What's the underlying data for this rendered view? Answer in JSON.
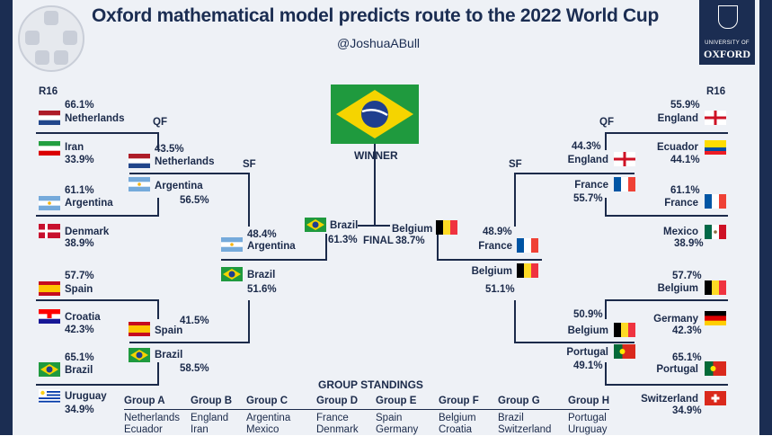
{
  "title": "Oxford mathematical model predicts route to the 2022 World Cup",
  "handle": "@JoshuaABull",
  "logo": {
    "university": "UNIVERSITY OF",
    "name": "OXFORD"
  },
  "winner_label": "WINNER",
  "final_label": "FINAL",
  "round_labels": {
    "r16_left": "R16",
    "r16_right": "R16",
    "qf_left": "QF",
    "qf_right": "QF",
    "sf_left": "SF",
    "sf_right": "SF"
  },
  "left": {
    "r16": [
      {
        "team": "Netherlands",
        "pct": "66.1%",
        "flag": "netherlands"
      },
      {
        "team": "Iran",
        "pct": "33.9%",
        "flag": "iran"
      },
      {
        "team": "Argentina",
        "pct": "61.1%",
        "flag": "argentina"
      },
      {
        "team": "Denmark",
        "pct": "38.9%",
        "flag": "denmark"
      },
      {
        "team": "Spain",
        "pct": "57.7%",
        "flag": "spain"
      },
      {
        "team": "Croatia",
        "pct": "42.3%",
        "flag": "croatia"
      },
      {
        "team": "Brazil",
        "pct": "65.1%",
        "flag": "brazil"
      },
      {
        "team": "Uruguay",
        "pct": "34.9%",
        "flag": "uruguay"
      }
    ],
    "qf": [
      {
        "team": "Netherlands",
        "pct": "43.5%"
      },
      {
        "team": "Argentina",
        "pct": "56.5%"
      },
      {
        "team": "Spain",
        "pct": "41.5%"
      },
      {
        "team": "Brazil",
        "pct": "58.5%"
      }
    ],
    "sf": [
      {
        "team": "Argentina",
        "pct": "48.4%"
      },
      {
        "team": "Brazil",
        "pct": "51.6%"
      }
    ]
  },
  "right": {
    "r16": [
      {
        "team": "England",
        "pct": "55.9%",
        "flag": "england"
      },
      {
        "team": "Ecuador",
        "pct": "44.1%",
        "flag": "ecuador"
      },
      {
        "team": "France",
        "pct": "61.1%",
        "flag": "france"
      },
      {
        "team": "Mexico",
        "pct": "38.9%",
        "flag": "mexico"
      },
      {
        "team": "Belgium",
        "pct": "57.7%",
        "flag": "belgium"
      },
      {
        "team": "Germany",
        "pct": "42.3%",
        "flag": "germany"
      },
      {
        "team": "Portugal",
        "pct": "65.1%",
        "flag": "portugal"
      },
      {
        "team": "Switzerland",
        "pct": "34.9%",
        "flag": "switzerland"
      }
    ],
    "qf": [
      {
        "team": "England",
        "pct": "44.3%"
      },
      {
        "team": "France",
        "pct": "55.7%"
      },
      {
        "team": "Belgium",
        "pct": "50.9%"
      },
      {
        "team": "Portugal",
        "pct": "49.1%"
      }
    ],
    "sf": [
      {
        "team": "France",
        "pct": "48.9%"
      },
      {
        "team": "Belgium",
        "pct": "51.1%"
      }
    ]
  },
  "final": [
    {
      "team": "Brazil",
      "pct": "61.3%"
    },
    {
      "team": "Belgium",
      "pct": "38.7%"
    }
  ],
  "group_standings": {
    "title": "GROUP STANDINGS",
    "groups": [
      {
        "name": "Group A",
        "first": "Netherlands",
        "second": "Ecuador"
      },
      {
        "name": "Group B",
        "first": "England",
        "second": "Iran"
      },
      {
        "name": "Group C",
        "first": "Argentina",
        "second": "Mexico"
      },
      {
        "name": "Group D",
        "first": "France",
        "second": "Denmark"
      },
      {
        "name": "Group E",
        "first": "Spain",
        "second": "Germany"
      },
      {
        "name": "Group F",
        "first": "Belgium",
        "second": "Croatia"
      },
      {
        "name": "Group G",
        "first": "Brazil",
        "second": "Switzerland"
      },
      {
        "name": "Group H",
        "first": "Portugal",
        "second": "Uruguay"
      }
    ]
  },
  "colors": {
    "navy": "#1b2d52",
    "background": "#eef1f6"
  }
}
